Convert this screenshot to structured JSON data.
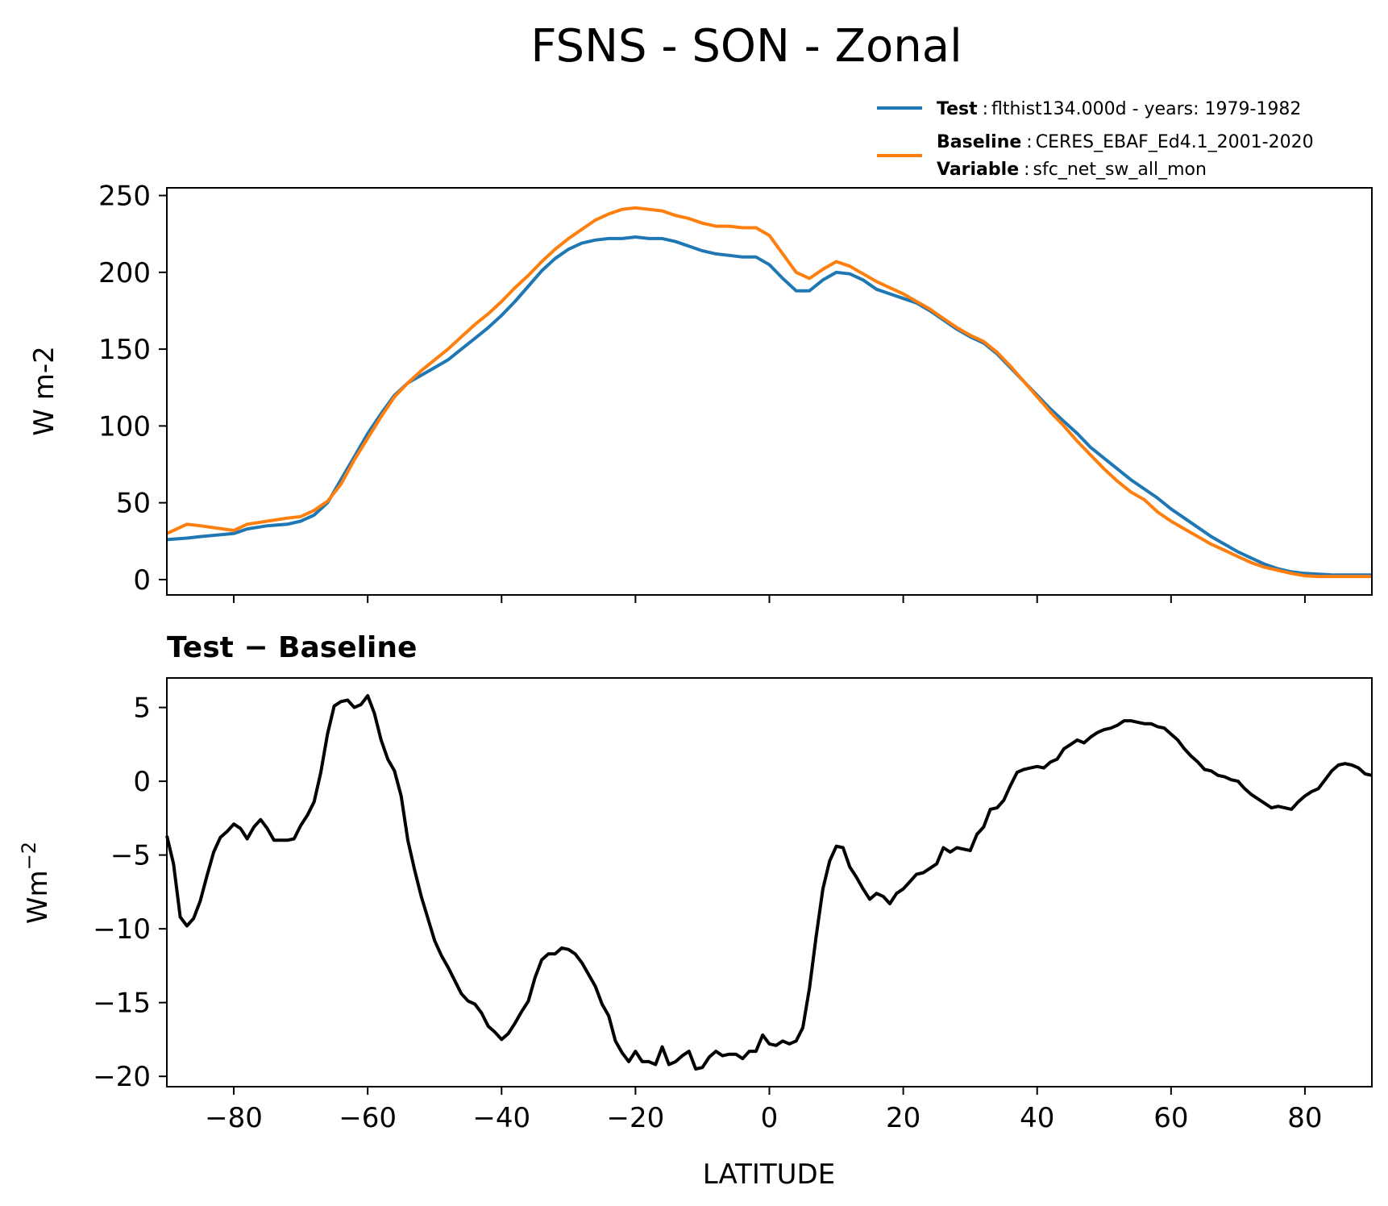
{
  "chart_data": [
    {
      "type": "line",
      "title": "FSNS - SON - Zonal",
      "xlabel": "",
      "ylabel": "W m-2",
      "xlim": [
        -90,
        90
      ],
      "ylim": [
        -10,
        255
      ],
      "xticks": [
        -80,
        -60,
        -40,
        -20,
        0,
        20,
        40,
        60,
        80
      ],
      "yticks": [
        0,
        50,
        100,
        150,
        200,
        250
      ],
      "ytick_labels": [
        "0",
        "50",
        "100",
        "150",
        "200",
        "250"
      ],
      "legend": {
        "placement": "above-right",
        "entries": [
          {
            "series": "Test",
            "key": "Test",
            "sep": ":",
            "text": "flthist134.000d - years: 1979-1982"
          },
          {
            "series": "Baseline",
            "key": "Baseline",
            "sep": ":",
            "text": "CERES_EBAF_Ed4.1_2001-2020"
          },
          {
            "series": "",
            "key": "Variable",
            "sep": ":",
            "text": "sfc_net_sw_all_mon"
          }
        ]
      },
      "x": [
        -90,
        -87,
        -85,
        -80,
        -78,
        -75,
        -72,
        -70,
        -68,
        -66,
        -64,
        -62,
        -60,
        -58,
        -56,
        -54,
        -52,
        -50,
        -48,
        -46,
        -44,
        -42,
        -40,
        -38,
        -36,
        -34,
        -32,
        -30,
        -28,
        -26,
        -24,
        -22,
        -20,
        -18,
        -16,
        -14,
        -12,
        -10,
        -8,
        -6,
        -4,
        -2,
        0,
        2,
        4,
        6,
        8,
        10,
        12,
        14,
        16,
        18,
        20,
        22,
        24,
        26,
        28,
        30,
        32,
        34,
        36,
        38,
        40,
        42,
        44,
        46,
        48,
        50,
        52,
        54,
        56,
        58,
        60,
        62,
        64,
        66,
        68,
        70,
        72,
        74,
        76,
        78,
        80,
        82,
        84,
        86,
        88,
        90
      ],
      "series": [
        {
          "name": "Test",
          "color": "#1f77b4",
          "values": [
            26,
            27,
            28,
            30,
            33,
            35,
            36,
            38,
            42,
            50,
            65,
            80,
            95,
            108,
            120,
            128,
            133,
            138,
            143,
            150,
            157,
            164,
            172,
            181,
            191,
            201,
            209,
            215,
            219,
            221,
            222,
            222,
            223,
            222,
            222,
            220,
            217,
            214,
            212,
            211,
            210,
            210,
            205,
            196,
            188,
            188,
            195,
            200,
            199,
            195,
            189,
            186,
            183,
            180,
            175,
            169,
            163,
            158,
            154,
            147,
            138,
            129,
            120,
            111,
            103,
            95,
            86,
            79,
            72,
            65,
            59,
            53,
            46,
            40,
            34,
            28,
            23,
            18,
            14,
            10,
            7,
            5,
            4,
            3.5,
            3,
            3,
            3,
            3
          ]
        },
        {
          "name": "Baseline",
          "color": "#ff7f0e",
          "values": [
            30,
            36,
            35,
            32,
            36,
            38,
            40,
            41,
            45,
            51,
            62,
            78,
            92,
            106,
            119,
            128,
            136,
            143,
            150,
            158,
            166,
            173,
            181,
            190,
            198,
            207,
            215,
            222,
            228,
            234,
            238,
            241,
            242,
            241,
            240,
            237,
            235,
            232,
            230,
            230,
            229,
            229,
            224,
            212,
            200,
            196,
            202,
            207,
            204,
            199,
            194,
            190,
            186,
            181,
            176,
            170,
            164,
            159,
            155,
            148,
            139,
            129,
            119,
            109,
            100,
            90,
            81,
            72,
            64,
            57,
            52,
            44,
            38,
            33,
            28,
            23,
            19,
            15,
            11,
            8,
            6,
            4,
            2.5,
            2,
            2,
            2,
            2,
            2
          ]
        }
      ]
    },
    {
      "type": "line",
      "title": "Test − Baseline",
      "xlabel": "LATITUDE",
      "ylabel": "Wm",
      "ylabel_sup": "−2",
      "xlim": [
        -90,
        90
      ],
      "ylim": [
        -20.7,
        7
      ],
      "xticks": [
        -80,
        -60,
        -40,
        -20,
        0,
        20,
        40,
        60,
        80
      ],
      "xtick_labels": [
        "−80",
        "−60",
        "−40",
        "−20",
        "0",
        "20",
        "40",
        "60",
        "80"
      ],
      "yticks": [
        5,
        0,
        -5,
        -10,
        -15,
        -20
      ],
      "ytick_labels": [
        "5",
        "0",
        "−5",
        "−10",
        "−15",
        "−20"
      ],
      "series": [
        {
          "name": "Test − Baseline",
          "color": "#000000",
          "x": [
            -90,
            -89,
            -88,
            -87,
            -86,
            -85,
            -84,
            -83,
            -82,
            -81,
            -80,
            -79,
            -78,
            -77,
            -76,
            -75,
            -74,
            -73,
            -72,
            -71,
            -70,
            -69,
            -68,
            -67,
            -66,
            -65,
            -64,
            -63,
            -62,
            -61,
            -60,
            -59,
            -58,
            -57,
            -56,
            -55,
            -54,
            -53,
            -52,
            -51,
            -50,
            -49,
            -48,
            -47,
            -46,
            -45,
            -44,
            -43,
            -42,
            -41,
            -40,
            -39,
            -38,
            -37,
            -36,
            -35,
            -34,
            -33,
            -32,
            -31,
            -30,
            -29,
            -28,
            -27,
            -26,
            -25,
            -24,
            -23,
            -22,
            -21,
            -20,
            -19,
            -18,
            -17,
            -16,
            -15,
            -14,
            -13,
            -12,
            -11,
            -10,
            -9,
            -8,
            -7,
            -6,
            -5,
            -4,
            -3,
            -2,
            -1,
            0,
            1,
            2,
            3,
            4,
            5,
            6,
            7,
            8,
            9,
            10,
            11,
            12,
            13,
            14,
            15,
            16,
            17,
            18,
            19,
            20,
            21,
            22,
            23,
            24,
            25,
            26,
            27,
            28,
            29,
            30,
            31,
            32,
            33,
            34,
            35,
            36,
            37,
            38,
            39,
            40,
            41,
            42,
            43,
            44,
            45,
            46,
            47,
            48,
            49,
            50,
            51,
            52,
            53,
            54,
            55,
            56,
            57,
            58,
            59,
            60,
            61,
            62,
            63,
            64,
            65,
            66,
            67,
            68,
            69,
            70,
            71,
            72,
            73,
            74,
            75,
            76,
            77,
            78,
            79,
            80,
            81,
            82,
            83,
            84,
            85,
            86,
            87,
            88,
            89,
            90
          ],
          "values": [
            -3.7,
            -5.6,
            -9.2,
            -9.8,
            -9.3,
            -8.1,
            -6.4,
            -4.8,
            -3.8,
            -3.4,
            -2.9,
            -3.2,
            -3.9,
            -3.1,
            -2.6,
            -3.2,
            -4.0,
            -4.0,
            -4.0,
            -3.9,
            -3.0,
            -2.3,
            -1.4,
            0.6,
            3.2,
            5.1,
            5.4,
            5.5,
            5.0,
            5.2,
            5.8,
            4.6,
            2.8,
            1.5,
            0.7,
            -1.0,
            -4.0,
            -6.0,
            -7.8,
            -9.3,
            -10.8,
            -11.8,
            -12.6,
            -13.5,
            -14.4,
            -14.9,
            -15.1,
            -15.7,
            -16.6,
            -17.0,
            -17.5,
            -17.1,
            -16.4,
            -15.6,
            -14.9,
            -13.3,
            -12.1,
            -11.7,
            -11.7,
            -11.3,
            -11.4,
            -11.7,
            -12.3,
            -13.1,
            -13.9,
            -15.1,
            -15.9,
            -17.6,
            -18.4,
            -19.0,
            -18.3,
            -19.0,
            -19.0,
            -19.2,
            -18.0,
            -19.2,
            -19.0,
            -18.6,
            -18.3,
            -19.5,
            -19.4,
            -18.7,
            -18.3,
            -18.6,
            -18.5,
            -18.5,
            -18.8,
            -18.3,
            -18.3,
            -17.2,
            -17.8,
            -17.9,
            -17.6,
            -17.8,
            -17.6,
            -16.7,
            -14.0,
            -10.5,
            -7.3,
            -5.4,
            -4.4,
            -4.5,
            -5.8,
            -6.5,
            -7.3,
            -8.0,
            -7.6,
            -7.8,
            -8.3,
            -7.6,
            -7.3,
            -6.8,
            -6.3,
            -6.2,
            -5.9,
            -5.6,
            -4.5,
            -4.8,
            -4.5,
            -4.6,
            -4.7,
            -3.6,
            -3.1,
            -1.9,
            -1.8,
            -1.3,
            -0.3,
            0.6,
            0.8,
            0.9,
            1.0,
            0.9,
            1.3,
            1.5,
            2.2,
            2.5,
            2.8,
            2.6,
            3.0,
            3.3,
            3.5,
            3.6,
            3.8,
            4.1,
            4.1,
            4.0,
            3.9,
            3.9,
            3.7,
            3.6,
            3.2,
            2.8,
            2.2,
            1.7,
            1.3,
            0.8,
            0.7,
            0.4,
            0.3,
            0.1,
            0.0,
            -0.5,
            -0.9,
            -1.2,
            -1.5,
            -1.8,
            -1.7,
            -1.8,
            -1.9,
            -1.4,
            -1.0,
            -0.7,
            -0.5,
            0.1,
            0.7,
            1.1,
            1.2,
            1.1,
            0.9,
            0.5,
            0.4
          ]
        }
      ]
    }
  ]
}
